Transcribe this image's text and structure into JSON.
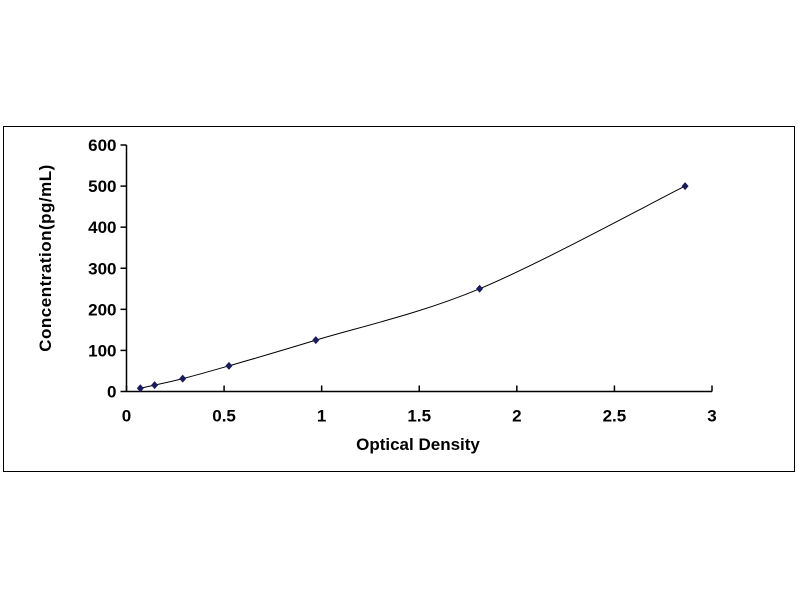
{
  "chart_data": {
    "type": "scatter",
    "title": "",
    "xlabel": "Optical Density",
    "ylabel": "Concentration(pg/mL)",
    "xlim": [
      0,
      3
    ],
    "ylim": [
      0,
      600
    ],
    "xticks": [
      "0",
      "0.5",
      "1",
      "1.5",
      "2",
      "2.5",
      "3"
    ],
    "yticks": [
      "0",
      "100",
      "200",
      "300",
      "400",
      "500",
      "600"
    ],
    "grid": false,
    "legend": "none",
    "marker_color": "#1a1a5e",
    "line_color": "#000000",
    "line": "smooth",
    "points": [
      {
        "x": 0.071,
        "y": 7.8
      },
      {
        "x": 0.144,
        "y": 15.6
      },
      {
        "x": 0.288,
        "y": 31.25
      },
      {
        "x": 0.525,
        "y": 62.5
      },
      {
        "x": 0.97,
        "y": 125
      },
      {
        "x": 1.809,
        "y": 250
      },
      {
        "x": 2.862,
        "y": 500
      }
    ]
  }
}
